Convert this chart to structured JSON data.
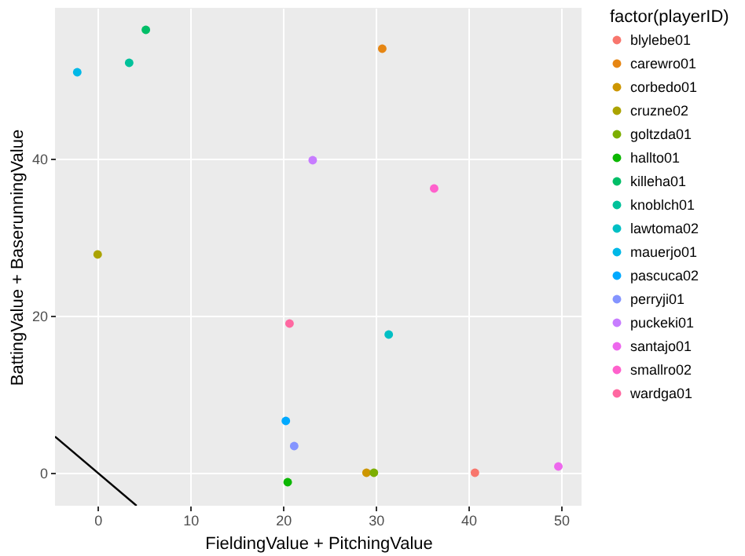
{
  "chart_data": {
    "type": "scatter",
    "xlabel": "FieldingValue + PitchingValue",
    "ylabel": "BattingValue + BaserunningValue",
    "legend_title": "factor(playerID)",
    "xlim": [
      -4.6,
      52.2
    ],
    "ylim": [
      -4.2,
      59.2
    ],
    "xticks": [
      0,
      10,
      20,
      30,
      40,
      50
    ],
    "yticks": [
      0,
      20,
      40
    ],
    "grid": true,
    "legend": "right",
    "marker": "circle",
    "series": [
      {
        "name": "blylebe01",
        "color": "#F8766D",
        "x": [
          40.7
        ],
        "values": [
          0
        ]
      },
      {
        "name": "carewro01",
        "color": "#E68613",
        "x": [
          30.7
        ],
        "values": [
          54
        ]
      },
      {
        "name": "corbedo01",
        "color": "#CD9600",
        "x": [
          29
        ],
        "values": [
          0
        ]
      },
      {
        "name": "cruzne02",
        "color": "#ABA300",
        "x": [
          0
        ],
        "values": [
          27.8
        ]
      },
      {
        "name": "goltzda01",
        "color": "#7CAE00",
        "x": [
          29.8
        ],
        "values": [
          0
        ]
      },
      {
        "name": "hallto01",
        "color": "#0CB702",
        "x": [
          20.5
        ],
        "values": [
          -1.2
        ]
      },
      {
        "name": "killeha01",
        "color": "#00BE67",
        "x": [
          5.2
        ],
        "values": [
          56.4
        ]
      },
      {
        "name": "knoblch01",
        "color": "#00C19A",
        "x": [
          3.4
        ],
        "values": [
          52.2
        ]
      },
      {
        "name": "lawtoma02",
        "color": "#00BFC4",
        "x": [
          31.4
        ],
        "values": [
          17.6
        ]
      },
      {
        "name": "mauerjo01",
        "color": "#00B8E7",
        "x": [
          -2.2
        ],
        "values": [
          51
        ]
      },
      {
        "name": "pascuca02",
        "color": "#00A9FF",
        "x": [
          20.3
        ],
        "values": [
          6.6
        ]
      },
      {
        "name": "perryji01",
        "color": "#8494FF",
        "x": [
          21.2
        ],
        "values": [
          3.4
        ]
      },
      {
        "name": "puckeki01",
        "color": "#C77CFF",
        "x": [
          23.2
        ],
        "values": [
          39.8
        ]
      },
      {
        "name": "santajo01",
        "color": "#ED68ED",
        "x": [
          49.7
        ],
        "values": [
          0.8
        ]
      },
      {
        "name": "smallro02",
        "color": "#FF61CC",
        "x": [
          36.3
        ],
        "values": [
          36.2
        ]
      },
      {
        "name": "wardga01",
        "color": "#FF68A1",
        "x": [
          20.7
        ],
        "values": [
          19
        ]
      },
      {
        "type": "line",
        "marker": "none",
        "color": "#000000",
        "x": [
          -4.6,
          4.2
        ],
        "values": [
          4.6,
          -4.2
        ]
      }
    ]
  }
}
